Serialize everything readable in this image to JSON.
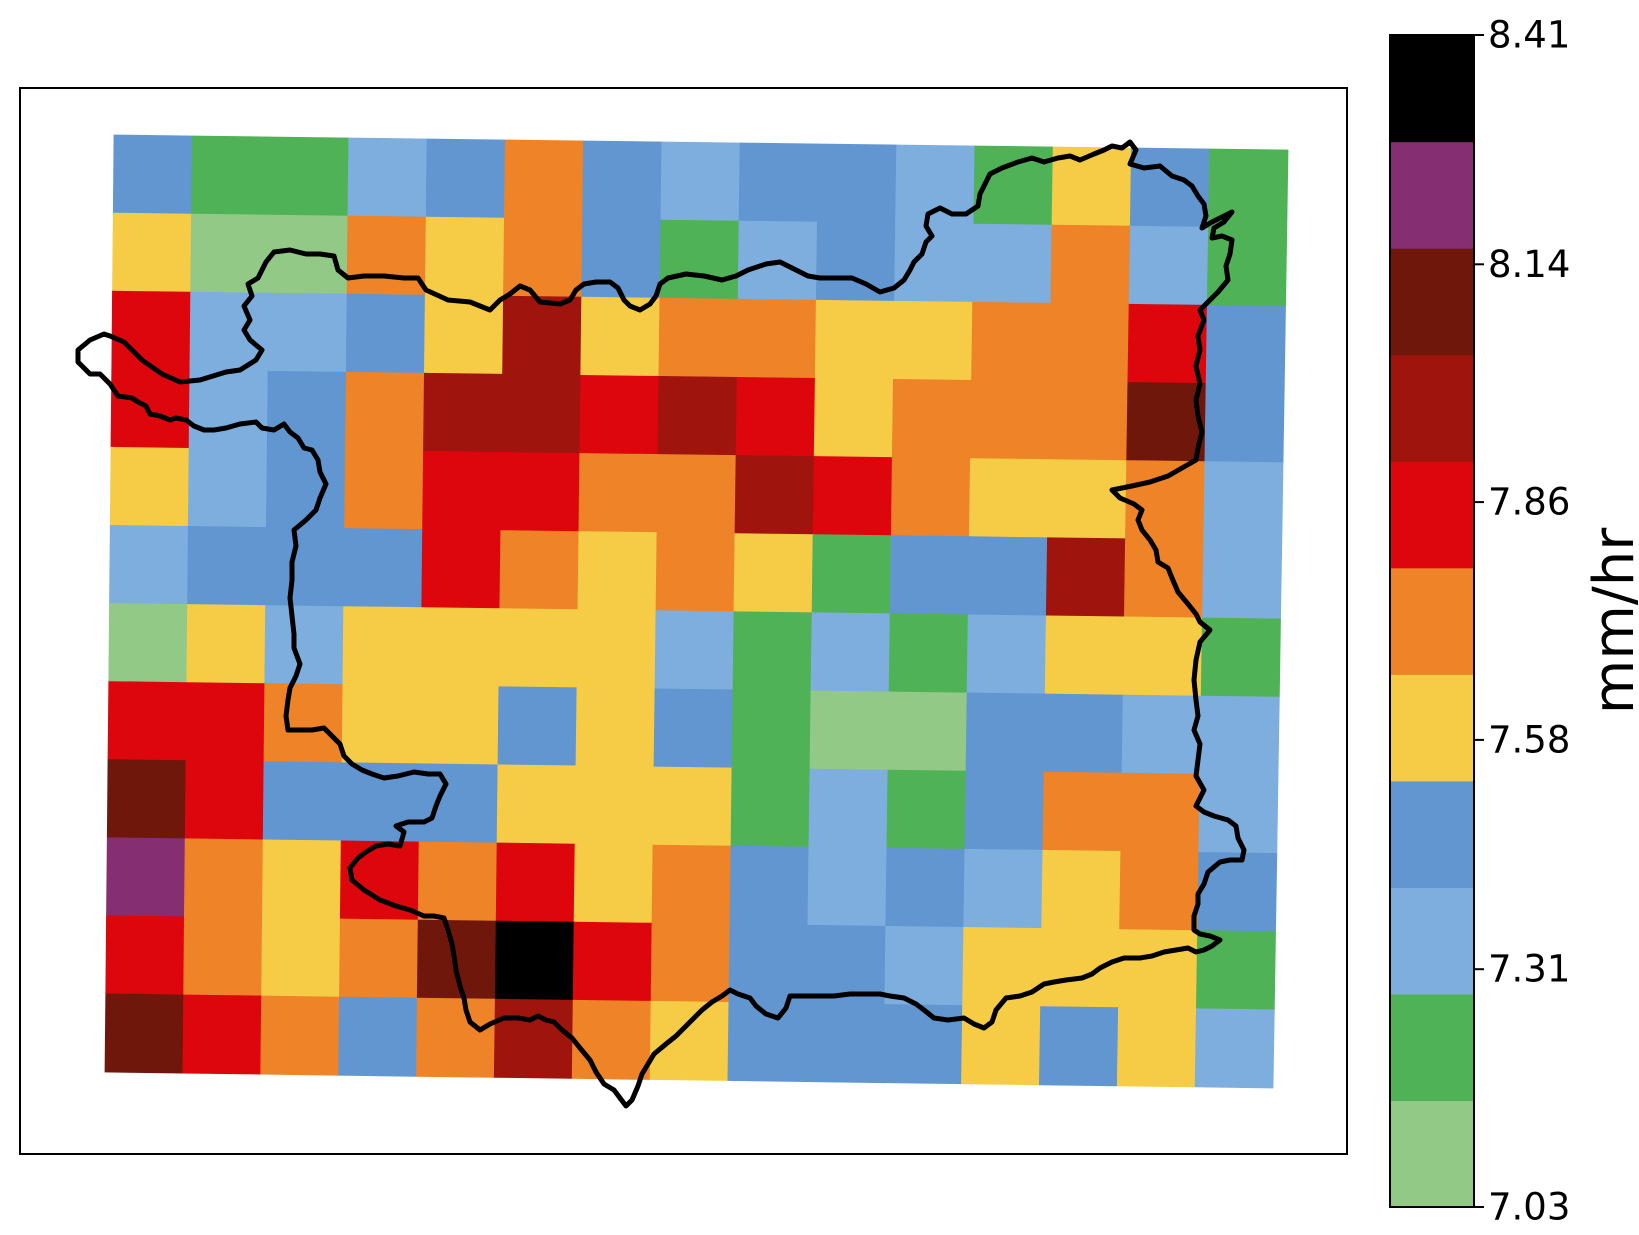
{
  "chart_data": {
    "type": "heatmap",
    "title": "",
    "xlabel": "",
    "ylabel": "",
    "colorbar": {
      "label": "mm/hr",
      "min": 7.03,
      "max": 8.41,
      "ticks": [
        "7.03",
        "7.31",
        "7.58",
        "7.86",
        "8.14",
        "8.41"
      ],
      "colors": [
        "#93c987",
        "#50b256",
        "#7daedd",
        "#6196d0",
        "#f6cc47",
        "#ee8327",
        "#dd060c",
        "#a0140e",
        "#70170c",
        "#852e72",
        "#000000"
      ]
    },
    "grid_rows": 12,
    "grid_cols": 15,
    "level_bounds": [
      7.03,
      7.1679,
      7.3059,
      7.4439,
      7.5818,
      7.7198,
      7.8577,
      7.9957,
      8.1337,
      8.2716,
      8.41
    ],
    "cells": [
      [
        3,
        1,
        1,
        2,
        3,
        5,
        3,
        2,
        3,
        3,
        2,
        1,
        4,
        3,
        1
      ],
      [
        4,
        0,
        0,
        5,
        4,
        5,
        3,
        1,
        2,
        3,
        2,
        2,
        5,
        2,
        1
      ],
      [
        6,
        2,
        2,
        3,
        4,
        7,
        4,
        5,
        5,
        4,
        4,
        5,
        5,
        6,
        3
      ],
      [
        6,
        2,
        3,
        5,
        7,
        7,
        6,
        7,
        6,
        4,
        5,
        5,
        5,
        8,
        3
      ],
      [
        4,
        2,
        3,
        5,
        6,
        6,
        5,
        5,
        7,
        6,
        5,
        4,
        4,
        5,
        2
      ],
      [
        2,
        3,
        3,
        3,
        6,
        5,
        4,
        5,
        4,
        1,
        3,
        3,
        7,
        5,
        2
      ],
      [
        0,
        4,
        2,
        4,
        4,
        4,
        4,
        2,
        1,
        2,
        1,
        2,
        4,
        4,
        1
      ],
      [
        6,
        6,
        5,
        4,
        4,
        3,
        4,
        3,
        1,
        0,
        0,
        3,
        3,
        2,
        2
      ],
      [
        8,
        6,
        3,
        3,
        3,
        4,
        4,
        4,
        1,
        2,
        1,
        3,
        5,
        5,
        2
      ],
      [
        9,
        5,
        4,
        6,
        5,
        6,
        4,
        5,
        3,
        2,
        3,
        2,
        4,
        5,
        3
      ],
      [
        6,
        5,
        4,
        5,
        8,
        10,
        6,
        5,
        3,
        3,
        2,
        4,
        4,
        4,
        1
      ],
      [
        8,
        6,
        5,
        3,
        5,
        7,
        5,
        4,
        3,
        3,
        3,
        4,
        3,
        4,
        2
      ]
    ]
  }
}
